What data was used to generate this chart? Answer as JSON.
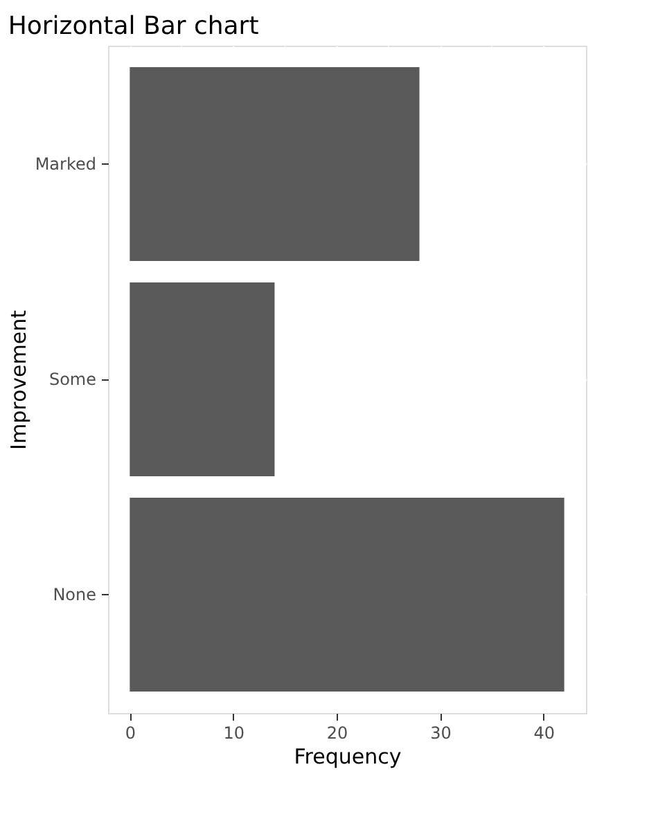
{
  "chart_data": {
    "type": "bar",
    "orientation": "horizontal",
    "title": "Horizontal Bar chart",
    "xlabel": "Frequency",
    "ylabel": "Improvement",
    "categories": [
      "Marked",
      "Some",
      "None"
    ],
    "values": [
      28,
      14,
      42
    ],
    "color": "#595959",
    "xlim": [
      -2.1,
      44.1
    ],
    "xticks": [
      0,
      10,
      20,
      30,
      40
    ],
    "grid": true
  }
}
